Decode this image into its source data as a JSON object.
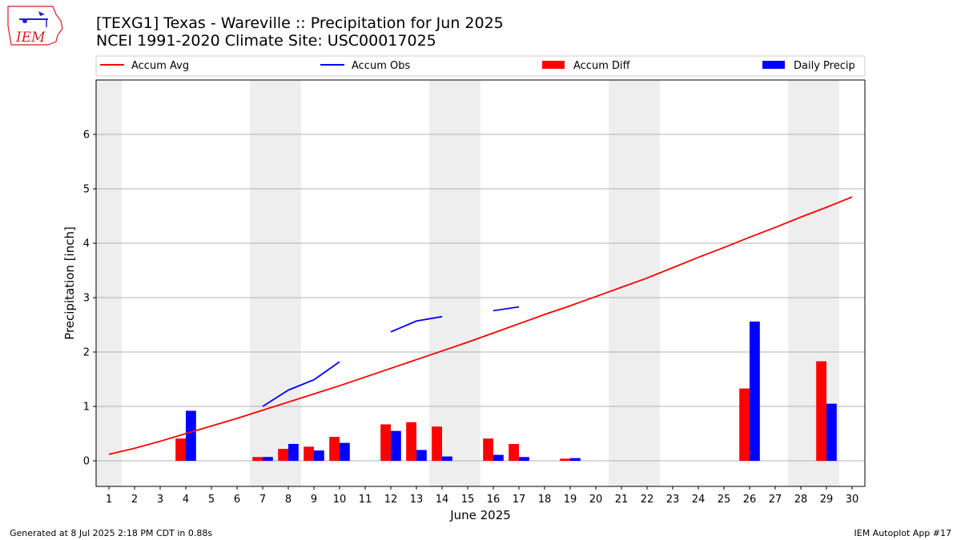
{
  "colors": {
    "accum_avg": "#ff0000",
    "accum_obs": "#0000ff",
    "accum_diff": "#ff0000",
    "daily_precip": "#0000ff",
    "weekend_band": "#eeeeee",
    "grid": "#b0b0b0"
  },
  "logo": {
    "text": "IEM",
    "icon": "iowa-state-weather-icon"
  },
  "footer": {
    "left": "Generated at 8 Jul 2025 2:18 PM CDT in 0.88s",
    "right": "IEM Autoplot App #17"
  },
  "chart_data": {
    "type": "bar",
    "title": "[TEXG1] Texas - Wareville :: Precipitation for Jun 2025",
    "subtitle": "NCEI 1991-2020 Climate Site: USC00017025",
    "xlabel": "June 2025",
    "ylabel": "Precipitation [inch]",
    "xlim": [
      0.5,
      30.5
    ],
    "ylim": [
      -0.47,
      7.0
    ],
    "yticks": [
      0,
      1,
      2,
      3,
      4,
      5,
      6
    ],
    "categories": [
      "1",
      "2",
      "3",
      "4",
      "5",
      "6",
      "7",
      "8",
      "9",
      "10",
      "11",
      "12",
      "13",
      "14",
      "15",
      "16",
      "17",
      "18",
      "19",
      "20",
      "21",
      "22",
      "23",
      "24",
      "25",
      "26",
      "27",
      "28",
      "29",
      "30"
    ],
    "grid": "horizontal",
    "legend_position": "top",
    "weekend_bands": [
      [
        0.5,
        1.5
      ],
      [
        6.5,
        8.5
      ],
      [
        13.5,
        15.5
      ],
      [
        20.5,
        22.5
      ],
      [
        27.5,
        29.5
      ]
    ],
    "series": [
      {
        "name": "Accum Avg",
        "kind": "line",
        "values": [
          0.12,
          0.23,
          0.36,
          0.5,
          0.64,
          0.78,
          0.93,
          1.08,
          1.23,
          1.38,
          1.54,
          1.7,
          1.86,
          2.02,
          2.18,
          2.35,
          2.52,
          2.69,
          2.85,
          3.02,
          3.19,
          3.36,
          3.55,
          3.74,
          3.92,
          4.11,
          4.29,
          4.48,
          4.66,
          4.85
        ]
      },
      {
        "name": "Accum Obs",
        "kind": "line",
        "values": [
          null,
          null,
          null,
          null,
          null,
          null,
          1.0,
          1.3,
          1.49,
          1.82,
          null,
          2.37,
          2.57,
          2.65,
          null,
          2.76,
          2.83,
          null,
          null,
          null,
          null,
          null,
          null,
          null,
          null,
          null,
          null,
          null,
          null,
          null
        ]
      },
      {
        "name": "Accum Diff",
        "kind": "bar",
        "values": [
          0,
          0,
          0,
          0.41,
          0,
          0,
          0.07,
          0.22,
          0.26,
          0.44,
          0,
          0.67,
          0.71,
          0.63,
          0,
          0.41,
          0.31,
          0,
          0.04,
          0,
          0,
          0,
          0,
          0,
          0,
          1.33,
          0,
          0,
          1.83,
          0
        ]
      },
      {
        "name": "Daily Precip",
        "kind": "bar",
        "values": [
          0,
          0,
          0,
          0.92,
          0,
          0,
          0.07,
          0.31,
          0.19,
          0.33,
          0,
          0.55,
          0.2,
          0.08,
          0,
          0.11,
          0.07,
          0,
          0.05,
          0,
          0,
          0,
          0,
          0,
          0,
          2.56,
          0,
          0,
          1.05,
          0
        ]
      }
    ]
  }
}
